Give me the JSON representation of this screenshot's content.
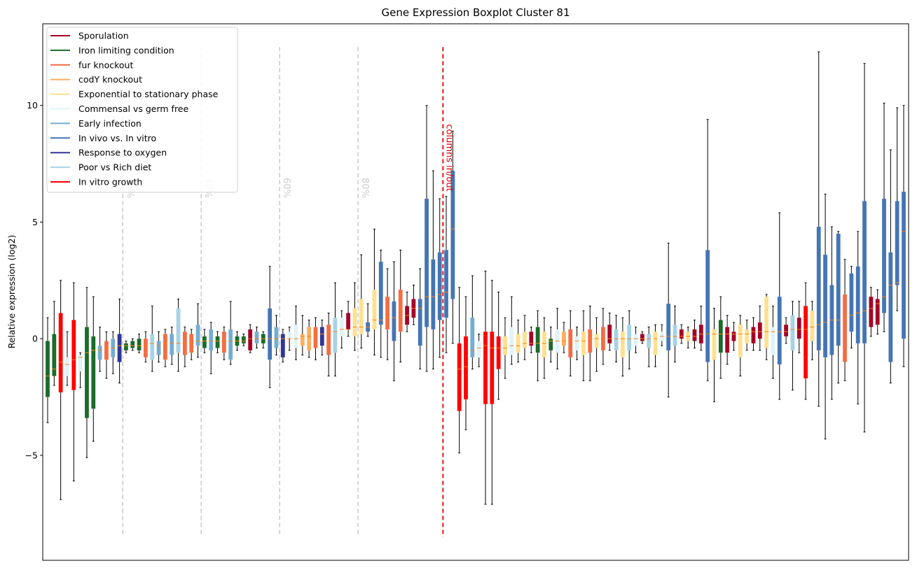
{
  "chart_data": {
    "type": "boxplot",
    "title": "Gene Expression Boxplot Cluster 81",
    "xlabel": "",
    "ylabel": "Relative expression (log2)",
    "ylim": [
      -9.5,
      13.5
    ],
    "yticks": [
      -5,
      0,
      5,
      10
    ],
    "ytick_labels": [
      "−5",
      "0",
      "5",
      "10"
    ],
    "categories_count": 127,
    "legend_position": "top-left",
    "legend": [
      {
        "name": "Sporulation",
        "color": "#a50026"
      },
      {
        "name": "Iron limiting condition",
        "color": "#1b6b2a"
      },
      {
        "name": "fur knockout",
        "color": "#f46d43"
      },
      {
        "name": "codY knockout",
        "color": "#fdae61"
      },
      {
        "name": "Exponential to stationary phase",
        "color": "#fee090"
      },
      {
        "name": "Commensal vs germ free",
        "color": "#e0f3f8"
      },
      {
        "name": "Early infection",
        "color": "#74add1"
      },
      {
        "name": "In vivo vs. In vitro",
        "color": "#4575b4"
      },
      {
        "name": "Response to oxygen",
        "color": "#313695"
      },
      {
        "name": "Poor vs Rich diet",
        "color": "#a6d3e6"
      },
      {
        "name": "In vitro growth",
        "color": "#ff0000"
      }
    ],
    "percent_markers": [
      {
        "label": "20%",
        "index": 11.5
      },
      {
        "label": "40%",
        "index": 23.5
      },
      {
        "label": "60%",
        "index": 35.5
      },
      {
        "label": "80%",
        "index": 47.5
      }
    ],
    "columns_marker": {
      "label": "columns in/out",
      "index": 60.5,
      "color": "#dd0000"
    },
    "median_color": "#ff7f0e",
    "boxes": [
      {
        "g": 1,
        "q1": -2.5,
        "med": -1.6,
        "q3": -0.1,
        "wlo": -3.6,
        "whi": 0.9
      },
      {
        "g": 1,
        "q1": -1.6,
        "med": -1.3,
        "q3": 0.2,
        "wlo": -2.0,
        "whi": 1.6
      },
      {
        "g": 10,
        "q1": -2.3,
        "med": -1.0,
        "q3": 1.1,
        "wlo": -6.9,
        "whi": 2.5
      },
      {
        "g": 5,
        "q1": -1.6,
        "med": -1.1,
        "q3": -0.8,
        "wlo": -2.0,
        "whi": 0.3
      },
      {
        "g": 10,
        "q1": -2.2,
        "med": -0.9,
        "q3": 0.8,
        "wlo": -6.1,
        "whi": 2.4
      },
      {
        "g": 5,
        "q1": -1.4,
        "med": -0.8,
        "q3": -0.7,
        "wlo": -2.1,
        "whi": -0.6
      },
      {
        "g": 1,
        "q1": -3.4,
        "med": -0.6,
        "q3": 0.5,
        "wlo": -5.1,
        "whi": 2.2
      },
      {
        "g": 1,
        "q1": -3.0,
        "med": -0.5,
        "q3": 0.1,
        "wlo": -4.4,
        "whi": 1.8
      },
      {
        "g": 6,
        "q1": -0.9,
        "med": -0.5,
        "q3": -0.3,
        "wlo": -1.4,
        "whi": 0.5
      },
      {
        "g": 2,
        "q1": -0.9,
        "med": -0.4,
        "q3": -0.1,
        "wlo": -1.7,
        "whi": 0.3
      },
      {
        "g": 6,
        "q1": -0.8,
        "med": -0.4,
        "q3": 0.0,
        "wlo": -1.5,
        "whi": 0.3
      },
      {
        "g": 8,
        "q1": -1.0,
        "med": -0.3,
        "q3": 0.2,
        "wlo": -1.9,
        "whi": 1.7
      },
      {
        "g": 1,
        "q1": -0.5,
        "med": -0.3,
        "q3": -0.2,
        "wlo": -0.6,
        "whi": -0.1
      },
      {
        "g": 1,
        "q1": -0.4,
        "med": -0.3,
        "q3": -0.1,
        "wlo": -0.5,
        "whi": 0.0
      },
      {
        "g": 1,
        "q1": -0.5,
        "med": -0.3,
        "q3": 0.0,
        "wlo": -0.6,
        "whi": 0.2
      },
      {
        "g": 2,
        "q1": -0.8,
        "med": -0.3,
        "q3": 0.0,
        "wlo": -1.0,
        "whi": 0.3
      },
      {
        "g": 9,
        "q1": -0.9,
        "med": -0.2,
        "q3": 0.2,
        "wlo": -1.4,
        "whi": 1.4
      },
      {
        "g": 6,
        "q1": -0.7,
        "med": -0.3,
        "q3": -0.1,
        "wlo": -1.0,
        "whi": 0.3
      },
      {
        "g": 2,
        "q1": -0.9,
        "med": -0.2,
        "q3": 0.2,
        "wlo": -1.2,
        "whi": 0.4
      },
      {
        "g": 6,
        "q1": -0.7,
        "med": -0.2,
        "q3": 0.2,
        "wlo": -1.1,
        "whi": 0.5
      },
      {
        "g": 9,
        "q1": -0.6,
        "med": -0.2,
        "q3": 1.3,
        "wlo": -1.4,
        "whi": 1.7
      },
      {
        "g": 2,
        "q1": -0.7,
        "med": -0.2,
        "q3": 0.3,
        "wlo": -1.2,
        "whi": 0.5
      },
      {
        "g": 2,
        "q1": -0.6,
        "med": -0.2,
        "q3": 0.2,
        "wlo": -0.9,
        "whi": 0.4
      },
      {
        "g": 6,
        "q1": -0.3,
        "med": -0.1,
        "q3": 0.6,
        "wlo": -0.8,
        "whi": 1.5
      },
      {
        "g": 1,
        "q1": -0.4,
        "med": -0.1,
        "q3": 0.1,
        "wlo": -0.6,
        "whi": 0.4
      },
      {
        "g": 6,
        "q1": -0.5,
        "med": -0.1,
        "q3": 0.4,
        "wlo": -1.5,
        "whi": 0.7
      },
      {
        "g": 1,
        "q1": -0.4,
        "med": -0.1,
        "q3": 0.1,
        "wlo": -0.6,
        "whi": 0.3
      },
      {
        "g": 2,
        "q1": -0.6,
        "med": -0.1,
        "q3": 0.3,
        "wlo": -0.9,
        "whi": 0.5
      },
      {
        "g": 6,
        "q1": -0.9,
        "med": -0.1,
        "q3": 0.4,
        "wlo": -1.1,
        "whi": 1.6
      },
      {
        "g": 1,
        "q1": -0.3,
        "med": -0.1,
        "q3": 0.1,
        "wlo": -0.5,
        "whi": 0.3
      },
      {
        "g": 1,
        "q1": -0.2,
        "med": -0.1,
        "q3": 0.1,
        "wlo": -0.3,
        "whi": 0.2
      },
      {
        "g": 0,
        "q1": -0.5,
        "med": 0.0,
        "q3": 0.4,
        "wlo": -0.6,
        "whi": 0.6
      },
      {
        "g": 6,
        "q1": -0.2,
        "med": 0.0,
        "q3": 0.3,
        "wlo": -0.4,
        "whi": 0.5
      },
      {
        "g": 1,
        "q1": -0.2,
        "med": 0.0,
        "q3": 0.2,
        "wlo": -0.4,
        "whi": 0.3
      },
      {
        "g": 7,
        "q1": -0.9,
        "med": 0.0,
        "q3": 1.3,
        "wlo": -2.1,
        "whi": 3.1
      },
      {
        "g": 6,
        "q1": -0.4,
        "med": 0.0,
        "q3": 0.5,
        "wlo": -0.7,
        "whi": 1.0
      },
      {
        "g": 8,
        "q1": -0.8,
        "med": 0.0,
        "q3": 0.2,
        "wlo": -1.0,
        "whi": 0.4
      },
      {
        "g": 5,
        "q1": 0.0,
        "med": 0.0,
        "q3": 0.3,
        "wlo": -0.5,
        "whi": 0.5
      },
      {
        "g": 5,
        "q1": -0.4,
        "med": 0.0,
        "q3": 0.6,
        "wlo": -0.9,
        "whi": 1.4
      },
      {
        "g": 3,
        "q1": -0.3,
        "med": 0.1,
        "q3": 0.2,
        "wlo": -0.7,
        "whi": 1.0
      },
      {
        "g": 3,
        "q1": -0.5,
        "med": 0.1,
        "q3": 0.5,
        "wlo": -0.8,
        "whi": 0.8
      },
      {
        "g": 2,
        "q1": -0.4,
        "med": 0.2,
        "q3": 0.5,
        "wlo": -0.9,
        "whi": 0.9
      },
      {
        "g": 8,
        "q1": -0.3,
        "med": 0.2,
        "q3": 0.5,
        "wlo": -0.7,
        "whi": 0.8
      },
      {
        "g": 2,
        "q1": -0.7,
        "med": 0.3,
        "q3": 0.6,
        "wlo": -1.6,
        "whi": 1.1
      },
      {
        "g": 9,
        "q1": -0.6,
        "med": 0.3,
        "q3": 0.9,
        "wlo": -1.6,
        "whi": 2.4
      },
      {
        "g": 5,
        "q1": 0.1,
        "med": 0.4,
        "q3": 0.9,
        "wlo": -0.4,
        "whi": 1.2
      },
      {
        "g": 0,
        "q1": 0.4,
        "med": 0.4,
        "q3": 1.1,
        "wlo": 0.1,
        "whi": 1.6
      },
      {
        "g": 4,
        "q1": 0.1,
        "med": 0.5,
        "q3": 1.3,
        "wlo": -0.5,
        "whi": 2.4
      },
      {
        "g": 4,
        "q1": 0.2,
        "med": 0.5,
        "q3": 1.7,
        "wlo": -0.4,
        "whi": 3.6
      },
      {
        "g": 7,
        "q1": 0.3,
        "med": 0.5,
        "q3": 0.7,
        "wlo": 0.1,
        "whi": 1.5
      },
      {
        "g": 4,
        "q1": 0.4,
        "med": 0.8,
        "q3": 2.1,
        "wlo": -0.7,
        "whi": 4.7
      },
      {
        "g": 7,
        "q1": 0.6,
        "med": 0.8,
        "q3": 3.3,
        "wlo": -0.8,
        "whi": 3.8
      },
      {
        "g": 2,
        "q1": 0.4,
        "med": 0.9,
        "q3": 1.8,
        "wlo": -0.9,
        "whi": 3.0
      },
      {
        "g": 7,
        "q1": -0.1,
        "med": 0.9,
        "q3": 1.6,
        "wlo": -1.8,
        "whi": 3.3
      },
      {
        "g": 2,
        "q1": 0.3,
        "med": 1.2,
        "q3": 2.1,
        "wlo": -1.0,
        "whi": 3.8
      },
      {
        "g": 0,
        "q1": 0.6,
        "med": 1.0,
        "q3": 1.4,
        "wlo": 0.3,
        "whi": 2.0
      },
      {
        "g": 0,
        "q1": 0.9,
        "med": 1.3,
        "q3": 1.7,
        "wlo": 0.6,
        "whi": 2.3
      },
      {
        "g": 7,
        "q1": -0.3,
        "med": 1.3,
        "q3": 1.7,
        "wlo": -1.3,
        "whi": 3.0
      },
      {
        "g": 7,
        "q1": 0.5,
        "med": 1.8,
        "q3": 6.0,
        "wlo": -1.4,
        "whi": 10.0
      },
      {
        "g": 7,
        "q1": 0.4,
        "med": 1.8,
        "q3": 3.4,
        "wlo": -1.3,
        "whi": 7.2
      },
      {
        "g": 7,
        "q1": 0.8,
        "med": 1.9,
        "q3": 3.7,
        "wlo": -0.8,
        "whi": 6.0
      },
      {
        "g": 7,
        "q1": 0.9,
        "med": 2.0,
        "q3": 3.8,
        "wlo": -0.6,
        "whi": 6.1
      },
      {
        "g": 7,
        "q1": 1.7,
        "med": 4.7,
        "q3": 7.2,
        "wlo": -0.2,
        "whi": 8.9
      },
      {
        "g": 10,
        "q1": -3.1,
        "med": -1.3,
        "q3": -0.2,
        "wlo": -4.9,
        "whi": 2.2
      },
      {
        "g": 10,
        "q1": -2.6,
        "med": -1.2,
        "q3": 0.1,
        "wlo": -3.9,
        "whi": 1.8
      },
      {
        "g": 6,
        "q1": -0.8,
        "med": -0.5,
        "q3": 0.9,
        "wlo": -1.3,
        "whi": 2.7
      },
      {
        "g": 5,
        "q1": -0.8,
        "med": -0.4,
        "q3": -0.1,
        "wlo": -1.2,
        "whi": 0.2
      },
      {
        "g": 10,
        "q1": -2.8,
        "med": -0.3,
        "q3": 0.3,
        "wlo": -7.1,
        "whi": 2.9
      },
      {
        "g": 10,
        "q1": -2.8,
        "med": -0.4,
        "q3": 0.3,
        "wlo": -7.1,
        "whi": 2.5
      },
      {
        "g": 10,
        "q1": -1.3,
        "med": -0.4,
        "q3": 0.1,
        "wlo": -2.6,
        "whi": 2.0
      },
      {
        "g": 4,
        "q1": -0.7,
        "med": -0.4,
        "q3": 0.1,
        "wlo": -1.7,
        "whi": 0.9
      },
      {
        "g": 5,
        "q1": -0.7,
        "med": -0.3,
        "q3": 0.5,
        "wlo": -1.1,
        "whi": 1.8
      },
      {
        "g": 4,
        "q1": -0.6,
        "med": -0.3,
        "q3": 0.2,
        "wlo": -1.0,
        "whi": 0.8
      },
      {
        "g": 4,
        "q1": -0.4,
        "med": -0.2,
        "q3": 0.3,
        "wlo": -0.9,
        "whi": 1.0
      },
      {
        "g": 0,
        "q1": -0.3,
        "med": -0.2,
        "q3": 0.3,
        "wlo": -0.6,
        "whi": 0.5
      },
      {
        "g": 1,
        "q1": -0.6,
        "med": -0.2,
        "q3": 0.5,
        "wlo": -1.8,
        "whi": 1.2
      },
      {
        "g": 4,
        "q1": -0.8,
        "med": -0.2,
        "q3": 0.3,
        "wlo": -1.7,
        "whi": 0.9
      },
      {
        "g": 1,
        "q1": -0.5,
        "med": -0.1,
        "q3": 0.0,
        "wlo": -1.0,
        "whi": 0.5
      },
      {
        "g": 5,
        "q1": -0.6,
        "med": -0.1,
        "q3": 0.4,
        "wlo": -1.3,
        "whi": 1.3
      },
      {
        "g": 3,
        "q1": -0.3,
        "med": -0.1,
        "q3": 0.3,
        "wlo": -0.6,
        "whi": 0.7
      },
      {
        "g": 2,
        "q1": -0.8,
        "med": -0.1,
        "q3": 0.4,
        "wlo": -1.6,
        "whi": 1.2
      },
      {
        "g": 5,
        "q1": -0.5,
        "med": -0.1,
        "q3": 0.1,
        "wlo": -0.9,
        "whi": 0.5
      },
      {
        "g": 4,
        "q1": -0.7,
        "med": -0.1,
        "q3": 0.3,
        "wlo": -1.8,
        "whi": 1.2
      },
      {
        "g": 2,
        "q1": -0.6,
        "med": 0.0,
        "q3": 0.4,
        "wlo": -1.8,
        "whi": 1.4
      },
      {
        "g": 4,
        "q1": -0.4,
        "med": 0.0,
        "q3": 0.2,
        "wlo": -1.4,
        "whi": 0.9
      },
      {
        "g": 2,
        "q1": -0.5,
        "med": 0.0,
        "q3": 0.5,
        "wlo": -1.1,
        "whi": 1.3
      },
      {
        "g": 0,
        "q1": -0.2,
        "med": 0.0,
        "q3": 0.6,
        "wlo": -0.5,
        "whi": 1.1
      },
      {
        "g": 9,
        "q1": -0.5,
        "med": 0.0,
        "q3": 0.4,
        "wlo": -1.0,
        "whi": 1.0
      },
      {
        "g": 4,
        "q1": -0.8,
        "med": 0.0,
        "q3": 0.3,
        "wlo": -1.6,
        "whi": 0.9
      },
      {
        "g": 9,
        "q1": -0.5,
        "med": 0.0,
        "q3": 0.6,
        "wlo": -1.3,
        "whi": 1.2
      },
      {
        "g": 5,
        "q1": -0.3,
        "med": 0.0,
        "q3": 0.2,
        "wlo": -0.6,
        "whi": 0.5
      },
      {
        "g": 0,
        "q1": -0.1,
        "med": 0.0,
        "q3": 0.2,
        "wlo": -0.2,
        "whi": 0.3
      },
      {
        "g": 9,
        "q1": -0.4,
        "med": 0.0,
        "q3": 0.2,
        "wlo": -1.2,
        "whi": 0.5
      },
      {
        "g": 4,
        "q1": -0.7,
        "med": 0.0,
        "q3": 0.3,
        "wlo": -1.2,
        "whi": 0.6
      },
      {
        "g": 5,
        "q1": -0.1,
        "med": 0.1,
        "q3": 0.3,
        "wlo": -0.3,
        "whi": 0.6
      },
      {
        "g": 7,
        "q1": -0.5,
        "med": 0.1,
        "q3": 1.5,
        "wlo": -2.5,
        "whi": 4.1
      },
      {
        "g": 9,
        "q1": -0.3,
        "med": 0.1,
        "q3": 0.6,
        "wlo": -1.0,
        "whi": 1.4
      },
      {
        "g": 0,
        "q1": 0.0,
        "med": 0.1,
        "q3": 0.4,
        "wlo": -0.2,
        "whi": 0.6
      },
      {
        "g": 4,
        "q1": -0.1,
        "med": 0.1,
        "q3": 0.3,
        "wlo": -0.4,
        "whi": 0.5
      },
      {
        "g": 0,
        "q1": -0.1,
        "med": 0.1,
        "q3": 0.4,
        "wlo": -0.4,
        "whi": 0.8
      },
      {
        "g": 0,
        "q1": -0.2,
        "med": 0.2,
        "q3": 0.6,
        "wlo": -0.5,
        "whi": 1.4
      },
      {
        "g": 7,
        "q1": -1.0,
        "med": 0.2,
        "q3": 3.8,
        "wlo": -1.8,
        "whi": 9.4
      },
      {
        "g": 4,
        "q1": -0.9,
        "med": 0.2,
        "q3": 0.4,
        "wlo": -2.7,
        "whi": 1.3
      },
      {
        "g": 1,
        "q1": -0.6,
        "med": 0.2,
        "q3": 0.8,
        "wlo": -1.7,
        "whi": 1.8
      },
      {
        "g": 0,
        "q1": -0.6,
        "med": 0.2,
        "q3": 0.5,
        "wlo": -1.1,
        "whi": 1.0
      },
      {
        "g": 0,
        "q1": -0.1,
        "med": 0.2,
        "q3": 0.3,
        "wlo": -0.5,
        "whi": 0.7
      },
      {
        "g": 4,
        "q1": -0.8,
        "med": 0.2,
        "q3": 0.6,
        "wlo": -1.6,
        "whi": 1.0
      },
      {
        "g": 4,
        "q1": -0.2,
        "med": 0.2,
        "q3": 0.4,
        "wlo": -0.5,
        "whi": 0.8
      },
      {
        "g": 0,
        "q1": -0.2,
        "med": 0.3,
        "q3": 0.5,
        "wlo": -0.5,
        "whi": 0.9
      },
      {
        "g": 0,
        "q1": 0.0,
        "med": 0.3,
        "q3": 0.7,
        "wlo": -0.5,
        "whi": 1.4
      },
      {
        "g": 4,
        "q1": -0.4,
        "med": 0.3,
        "q3": 1.8,
        "wlo": -0.9,
        "whi": 1.9
      },
      {
        "g": 5,
        "q1": -0.7,
        "med": 0.3,
        "q3": 0.5,
        "wlo": -1.7,
        "whi": 1.4
      },
      {
        "g": 7,
        "q1": -1.1,
        "med": 0.3,
        "q3": 1.8,
        "wlo": -2.6,
        "whi": 5.4
      },
      {
        "g": 0,
        "q1": 0.1,
        "med": 0.3,
        "q3": 0.6,
        "wlo": -0.2,
        "whi": 0.9
      },
      {
        "g": 9,
        "q1": -0.5,
        "med": 0.4,
        "q3": 1.0,
        "wlo": -2.2,
        "whi": 1.6
      },
      {
        "g": 0,
        "q1": 0.0,
        "med": 0.4,
        "q3": 0.9,
        "wlo": -0.6,
        "whi": 1.6
      },
      {
        "g": 10,
        "q1": -1.7,
        "med": 0.4,
        "q3": 1.4,
        "wlo": -2.6,
        "whi": 2.4
      },
      {
        "g": 4,
        "q1": -0.1,
        "med": 0.5,
        "q3": 1.2,
        "wlo": -0.9,
        "whi": 1.6
      },
      {
        "g": 7,
        "q1": -0.5,
        "med": 0.6,
        "q3": 4.8,
        "wlo": -2.9,
        "whi": 12.3
      },
      {
        "g": 7,
        "q1": -0.8,
        "med": 0.7,
        "q3": 3.6,
        "wlo": -4.3,
        "whi": 6.2
      },
      {
        "g": 7,
        "q1": -0.7,
        "med": 0.8,
        "q3": 2.3,
        "wlo": -2.6,
        "whi": 4.8
      },
      {
        "g": 7,
        "q1": -0.3,
        "med": 0.8,
        "q3": 4.5,
        "wlo": -1.9,
        "whi": 4.6
      },
      {
        "g": 2,
        "q1": -1.0,
        "med": 0.9,
        "q3": 1.9,
        "wlo": -1.8,
        "whi": 3.4
      },
      {
        "g": 7,
        "q1": 0.3,
        "med": 1.0,
        "q3": 2.8,
        "wlo": -0.4,
        "whi": 3.1
      },
      {
        "g": 7,
        "q1": -0.2,
        "med": 1.1,
        "q3": 3.1,
        "wlo": -2.8,
        "whi": 4.6
      },
      {
        "g": 7,
        "q1": -0.2,
        "med": 1.2,
        "q3": 5.9,
        "wlo": -4.0,
        "whi": 11.8
      },
      {
        "g": 0,
        "q1": 0.5,
        "med": 1.3,
        "q3": 1.8,
        "wlo": 0.1,
        "whi": 2.2
      },
      {
        "g": 0,
        "q1": 0.6,
        "med": 1.5,
        "q3": 1.7,
        "wlo": 0.2,
        "whi": 2.1
      },
      {
        "g": 7,
        "q1": 1.1,
        "med": 1.8,
        "q3": 6.0,
        "wlo": 0.3,
        "whi": 10.1
      },
      {
        "g": 7,
        "q1": -1.0,
        "med": 2.3,
        "q3": 3.7,
        "wlo": -1.9,
        "whi": 8.1
      },
      {
        "g": 7,
        "q1": 2.3,
        "med": 2.4,
        "q3": 5.9,
        "wlo": 1.2,
        "whi": 9.9
      },
      {
        "g": 7,
        "q1": 0.0,
        "med": 4.6,
        "q3": 6.3,
        "wlo": -1.2,
        "whi": 10.0
      }
    ]
  }
}
